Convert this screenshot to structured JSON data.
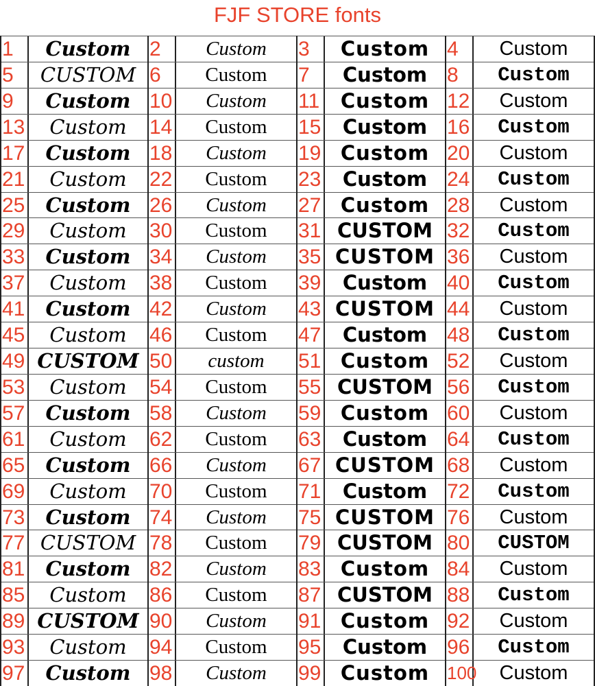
{
  "title": "FJF STORE fonts",
  "colors": {
    "number": "#e8432c",
    "sample": "#000000",
    "grid": "#222222"
  },
  "samples": [
    "Custom",
    "Custom",
    "Custom",
    "Custom",
    "CUSTOM",
    "Custom",
    "Custom",
    "Custom",
    "Custom",
    "Custom",
    "Custom",
    "Custom",
    "Custom",
    "Custom",
    "Custom",
    "Custom",
    "Custom",
    "Custom",
    "Custom",
    "Custom",
    "Custom",
    "Custom",
    "Custom",
    "Custom",
    "Custom",
    "Custom",
    "Custom",
    "Custom",
    "Custom",
    "Custom",
    "CUSTOM",
    "Custom",
    "Custom",
    "Custom",
    "CUSTOM",
    "Custom",
    "Custom",
    "Custom",
    "Custom",
    "Custom",
    "Custom",
    "Custom",
    "CUSTOM",
    "Custom",
    "Custom",
    "Custom",
    "Custom",
    "Custom",
    "CUSTOM",
    "custom",
    "Custom",
    "Custom",
    "Custom",
    "Custom",
    "CUSTOM",
    "Custom",
    "Custom",
    "Custom",
    "Custom",
    "Custom",
    "Custom",
    "Custom",
    "Custom",
    "Custom",
    "Custom",
    "Custom",
    "CUSTOM",
    "Custom",
    "Custom",
    "Custom",
    "Custom",
    "Custom",
    "Custom",
    "Custom",
    "CUSTOM",
    "Custom",
    "CUSTOM",
    "Custom",
    "CUSTOM",
    "CUSTOM",
    "Custom",
    "Custom",
    "Custom",
    "Custom",
    "Custom",
    "Custom",
    "CUSTOM",
    "Custom",
    "CUSTOM",
    "Custom",
    "Custom",
    "Custom",
    "Custom",
    "Custom",
    "Custom",
    "Custom",
    "Custom",
    "Custom",
    "Custom",
    "Custom"
  ]
}
